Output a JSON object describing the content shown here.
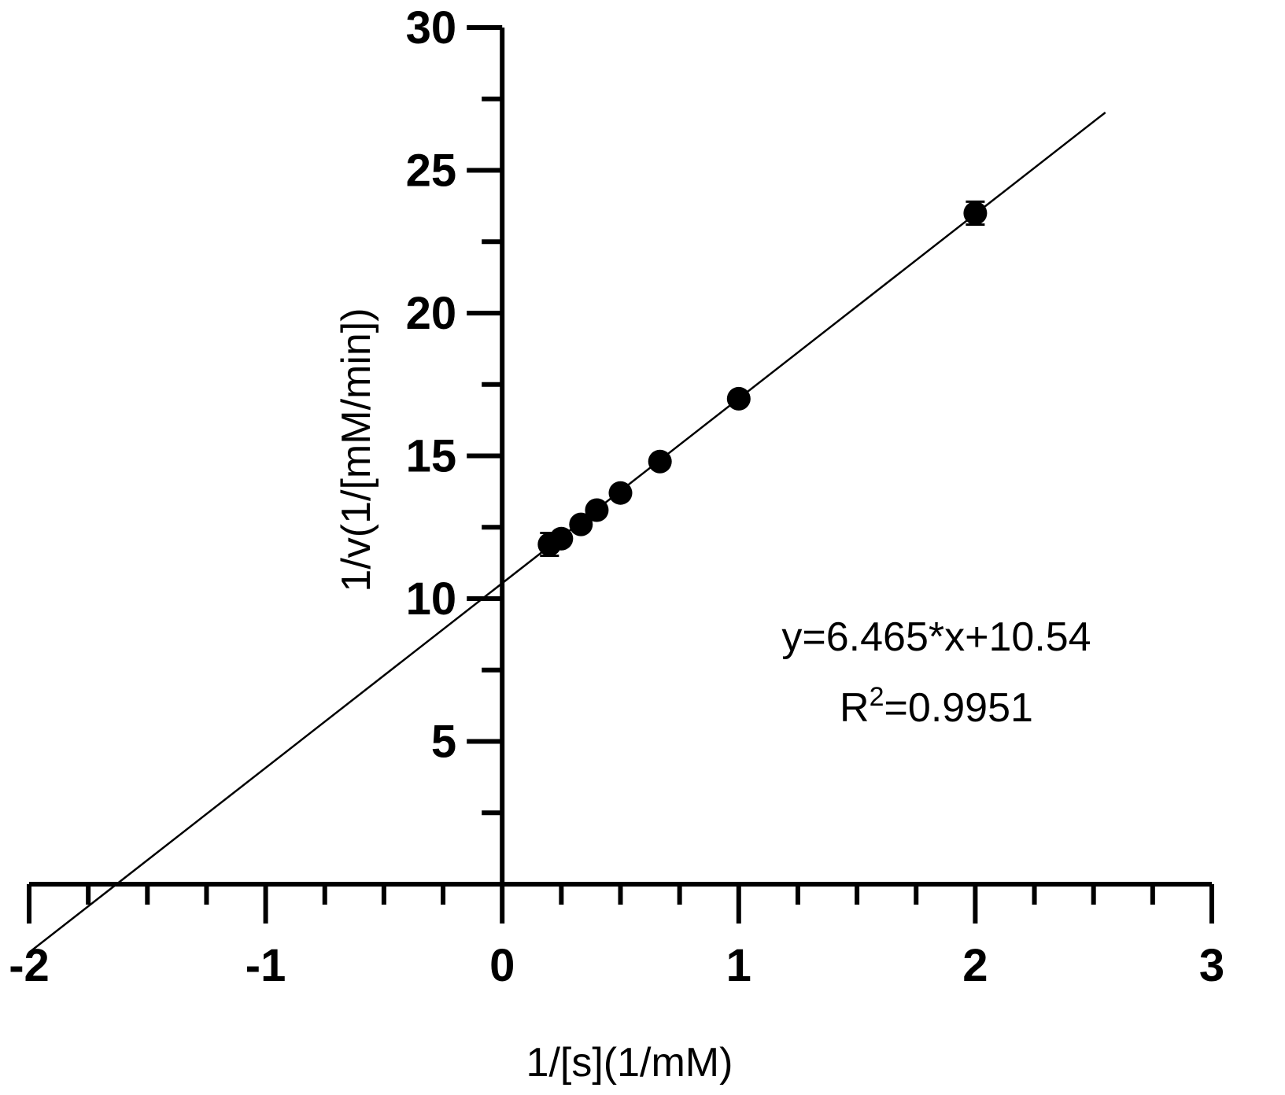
{
  "chart_data": {
    "type": "scatter",
    "xlabel": "1/[s](1/mM)",
    "ylabel": "1/v(1/[mM/min])",
    "xlim": [
      -2,
      3
    ],
    "ylim": [
      0,
      30
    ],
    "x_ticks": [
      -2,
      -1,
      0,
      1,
      2,
      3
    ],
    "x_tick_labels": [
      "-2",
      "-1",
      "0",
      "1",
      "2",
      "3"
    ],
    "y_ticks": [
      5,
      10,
      15,
      20,
      25,
      30
    ],
    "y_tick_labels": [
      "5",
      "10",
      "15",
      "20",
      "25",
      "30"
    ],
    "grid": false,
    "points": [
      {
        "x": 0.2,
        "y": 11.9,
        "err": 0.4
      },
      {
        "x": 0.25,
        "y": 12.1,
        "err": 0.2
      },
      {
        "x": 0.333,
        "y": 12.6,
        "err": 0.2
      },
      {
        "x": 0.4,
        "y": 13.1,
        "err": 0.2
      },
      {
        "x": 0.5,
        "y": 13.7,
        "err": 0.2
      },
      {
        "x": 0.667,
        "y": 14.8,
        "err": 0.2
      },
      {
        "x": 1.0,
        "y": 17.0,
        "err": 0.2
      },
      {
        "x": 2.0,
        "y": 23.5,
        "err": 0.4
      }
    ],
    "fit": {
      "slope": 6.465,
      "intercept": 10.54,
      "x_range": [
        -2,
        2.55
      ]
    },
    "annotation": {
      "equation": "y=6.465*x+10.54",
      "r2_prefix": "R",
      "r2_sup": "2",
      "r2_value": "=0.9951"
    }
  }
}
